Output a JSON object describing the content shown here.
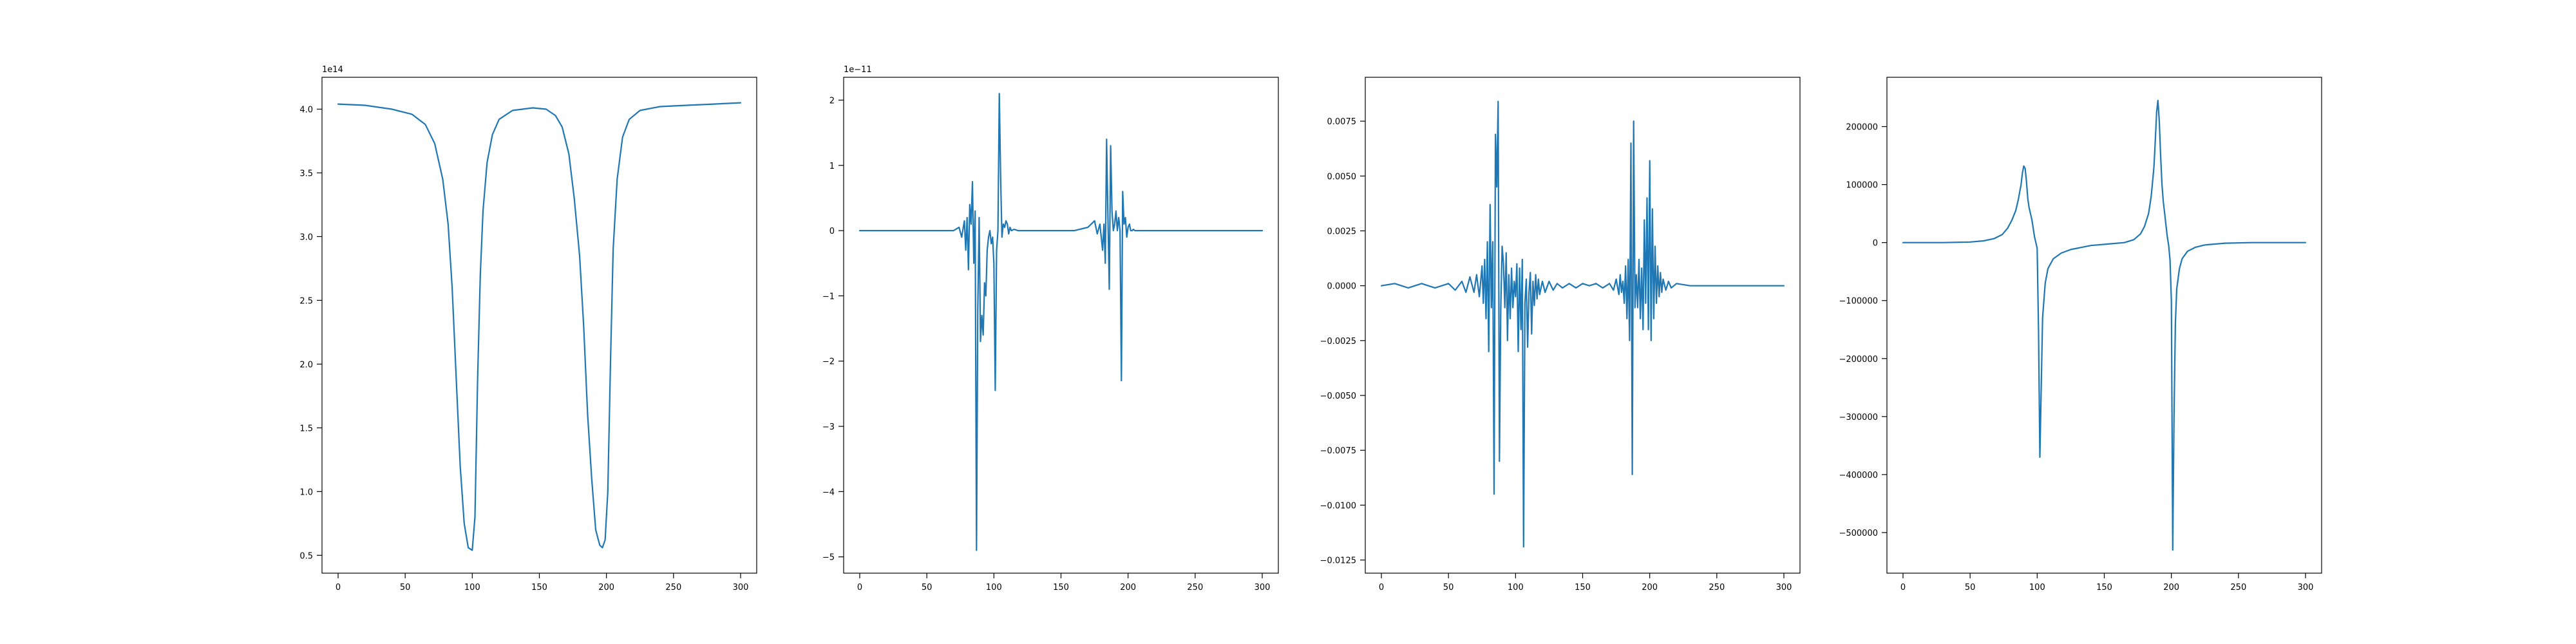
{
  "chart_data": [
    {
      "type": "line",
      "title": "",
      "xlabel": "",
      "ylabel": "",
      "offset_text": "1e14",
      "xlim": [
        -12,
        312
      ],
      "ylim": [
        0.36,
        4.25
      ],
      "xticks": [
        0,
        50,
        100,
        150,
        200,
        250,
        300
      ],
      "xtick_labels": [
        "0",
        "50",
        "100",
        "150",
        "200",
        "250",
        "300"
      ],
      "yticks": [
        0.5,
        1.0,
        1.5,
        2.0,
        2.5,
        3.0,
        3.5,
        4.0
      ],
      "ytick_labels": [
        "0.5",
        "1.0",
        "1.5",
        "2.0",
        "2.5",
        "3.0",
        "3.5",
        "4.0"
      ],
      "grid": false,
      "color": "#1f77b4",
      "series": [
        {
          "x": [
            0,
            20,
            40,
            55,
            65,
            72,
            78,
            82,
            85,
            88,
            91,
            94,
            97,
            100,
            102,
            104,
            106,
            108,
            111,
            115,
            120,
            130,
            145,
            155,
            162,
            167,
            172,
            176,
            180,
            183,
            186,
            189,
            192,
            195,
            197,
            199,
            201,
            203,
            205,
            208,
            212,
            217,
            225,
            240,
            260,
            280,
            300
          ],
          "y": [
            4.04,
            4.03,
            4.0,
            3.96,
            3.88,
            3.73,
            3.45,
            3.1,
            2.6,
            1.9,
            1.2,
            0.75,
            0.56,
            0.54,
            0.8,
            1.9,
            2.7,
            3.2,
            3.58,
            3.8,
            3.92,
            3.99,
            4.01,
            4.0,
            3.95,
            3.86,
            3.65,
            3.3,
            2.85,
            2.3,
            1.6,
            1.1,
            0.7,
            0.58,
            0.56,
            0.62,
            1.0,
            2.0,
            2.9,
            3.45,
            3.78,
            3.92,
            3.99,
            4.02,
            4.03,
            4.04,
            4.05
          ]
        }
      ]
    },
    {
      "type": "line",
      "title": "",
      "xlabel": "",
      "ylabel": "",
      "offset_text": "1e−11",
      "xlim": [
        -12,
        312
      ],
      "ylim": [
        -5.25,
        2.35
      ],
      "xticks": [
        0,
        50,
        100,
        150,
        200,
        250,
        300
      ],
      "xtick_labels": [
        "0",
        "50",
        "100",
        "150",
        "200",
        "250",
        "300"
      ],
      "yticks": [
        -5,
        -4,
        -3,
        -2,
        -1,
        0,
        1,
        2
      ],
      "ytick_labels": [
        "−5",
        "−4",
        "−3",
        "−2",
        "−1",
        "0",
        "1",
        "2"
      ],
      "grid": false,
      "color": "#1f77b4",
      "series": [
        {
          "x": [
            0,
            50,
            70,
            74,
            76,
            78,
            79,
            80,
            81,
            82,
            83,
            84,
            85,
            86,
            87,
            88,
            89,
            90,
            91,
            92,
            93,
            94,
            95,
            96,
            97,
            98,
            99,
            100,
            101,
            102,
            103,
            104,
            105,
            106,
            107,
            108,
            109,
            110,
            111,
            112,
            113,
            115,
            118,
            122,
            130,
            160,
            170,
            175,
            177,
            179,
            181,
            182,
            183,
            184,
            185,
            186,
            187,
            188,
            189,
            190,
            191,
            192,
            193,
            194,
            195,
            196,
            197,
            198,
            199,
            200,
            201,
            202,
            203,
            204,
            205,
            206,
            207,
            208,
            210,
            213,
            220,
            250,
            300
          ],
          "y": [
            0,
            0,
            0,
            0.05,
            -0.1,
            0.15,
            -0.3,
            0.2,
            -0.6,
            0.4,
            0.1,
            0.75,
            -0.5,
            0.3,
            -4.9,
            -1.2,
            0.2,
            -1.7,
            -1.3,
            -1.6,
            -0.8,
            -1.0,
            -0.3,
            -0.1,
            0.0,
            -0.2,
            -0.1,
            -0.5,
            -2.45,
            -0.3,
            0.0,
            2.1,
            0.8,
            -0.1,
            0.1,
            0.05,
            0.15,
            0.1,
            -0.05,
            0.05,
            0.0,
            0.02,
            0.0,
            0.0,
            0.0,
            0.0,
            0.05,
            0.15,
            -0.05,
            0.1,
            -0.3,
            0.1,
            -0.5,
            1.4,
            0.2,
            -0.9,
            1.3,
            0.3,
            0.0,
            0.1,
            0.3,
            0.0,
            0.2,
            0.0,
            -2.3,
            0.6,
            0.1,
            0.2,
            -0.1,
            0.05,
            0.1,
            0.0,
            0.0,
            0.02,
            0.0,
            0.0,
            0.0,
            0.0,
            0.0,
            0.0,
            0.0,
            0.0,
            0.0
          ]
        }
      ]
    },
    {
      "type": "line",
      "title": "",
      "xlabel": "",
      "ylabel": "",
      "offset_text": "",
      "xlim": [
        -12,
        312
      ],
      "ylim": [
        -0.0131,
        0.0095
      ],
      "xticks": [
        0,
        50,
        100,
        150,
        200,
        250,
        300
      ],
      "xtick_labels": [
        "0",
        "50",
        "100",
        "150",
        "200",
        "250",
        "300"
      ],
      "yticks": [
        -0.0125,
        -0.01,
        -0.0075,
        -0.005,
        -0.0025,
        0.0,
        0.0025,
        0.005,
        0.0075
      ],
      "ytick_labels": [
        "−0.0125",
        "−0.0100",
        "−0.0075",
        "−0.0050",
        "−0.0025",
        "0.0000",
        "0.0025",
        "0.0050",
        "0.0075"
      ],
      "grid": false,
      "color": "#1f77b4",
      "series": [
        {
          "x": [
            0,
            10,
            20,
            30,
            40,
            50,
            55,
            60,
            63,
            66,
            69,
            71,
            73,
            75,
            76,
            77,
            78,
            79,
            80,
            81,
            82,
            83,
            84,
            85,
            86,
            87,
            88,
            89,
            90,
            91,
            92,
            93,
            94,
            95,
            96,
            97,
            98,
            99,
            100,
            101,
            102,
            103,
            104,
            105,
            106,
            107,
            108,
            109,
            110,
            111,
            112,
            113,
            114,
            115,
            116,
            117,
            118,
            120,
            122,
            125,
            128,
            131,
            135,
            140,
            145,
            150,
            155,
            160,
            165,
            170,
            173,
            175,
            177,
            178,
            179,
            180,
            181,
            182,
            183,
            184,
            185,
            186,
            187,
            188,
            189,
            190,
            191,
            192,
            193,
            194,
            195,
            196,
            197,
            198,
            199,
            200,
            201,
            202,
            203,
            204,
            205,
            206,
            207,
            208,
            209,
            210,
            212,
            214,
            216,
            220,
            230,
            240,
            260,
            280,
            300
          ],
          "y": [
            0.0,
            0.0001,
            -0.0001,
            0.0001,
            -0.0001,
            0.0001,
            -0.0002,
            0.0002,
            -0.0003,
            0.0004,
            -0.0003,
            0.0005,
            -0.0005,
            0.0009,
            -0.0008,
            0.0012,
            -0.0015,
            0.002,
            -0.003,
            0.0037,
            -0.001,
            0.002,
            -0.0095,
            0.0069,
            0.0045,
            0.0084,
            -0.008,
            -0.001,
            0.0018,
            0.001,
            -0.001,
            0.0015,
            -0.0025,
            0.0005,
            -0.0015,
            0.0008,
            -0.001,
            0.0002,
            -0.0005,
            0.001,
            -0.003,
            0.0008,
            -0.002,
            0.0012,
            -0.0119,
            -0.0008,
            0.0003,
            -0.0028,
            -0.0003,
            0.0006,
            -0.0022,
            0.0002,
            -0.0009,
            0.0005,
            -0.0006,
            0.0003,
            -0.0004,
            0.0002,
            -0.0003,
            0.0002,
            -0.0002,
            0.0001,
            -0.0001,
            0.0001,
            -0.0001,
            0.0001,
            0.0,
            0.0001,
            -0.0001,
            0.0001,
            -0.0002,
            0.0003,
            -0.0004,
            0.0005,
            -0.0003,
            0.0002,
            -0.0008,
            0.0009,
            -0.0015,
            0.0012,
            -0.0025,
            0.0065,
            -0.0086,
            0.0075,
            -0.001,
            0.0005,
            -0.001,
            0.0012,
            -0.0015,
            0.0008,
            -0.002,
            0.003,
            -0.0008,
            0.004,
            -0.002,
            0.0057,
            -0.0025,
            0.0035,
            -0.0015,
            0.0018,
            -0.0008,
            0.0009,
            -0.0005,
            0.0006,
            -0.0003,
            0.0003,
            -0.0002,
            0.0002,
            -0.0001,
            0.0001,
            0.0,
            0.0,
            0.0,
            0.0,
            0.0
          ]
        }
      ]
    },
    {
      "type": "line",
      "title": "",
      "xlabel": "",
      "ylabel": "",
      "offset_text": "",
      "xlim": [
        -12,
        312
      ],
      "ylim": [
        -570000,
        285000
      ],
      "xticks": [
        0,
        50,
        100,
        150,
        200,
        250,
        300
      ],
      "xtick_labels": [
        "0",
        "50",
        "100",
        "150",
        "200",
        "250",
        "300"
      ],
      "yticks": [
        -500000,
        -400000,
        -300000,
        -200000,
        -100000,
        0,
        100000,
        200000
      ],
      "ytick_labels": [
        "−500000",
        "−400000",
        "−300000",
        "−200000",
        "−100000",
        "0",
        "100000",
        "200000"
      ],
      "grid": false,
      "color": "#1f77b4",
      "series": [
        {
          "x": [
            0,
            30,
            50,
            60,
            68,
            74,
            78,
            81,
            84,
            86,
            88,
            89,
            90,
            91,
            92,
            93,
            94,
            95,
            96,
            97,
            98,
            99,
            100,
            101,
            102,
            103,
            104,
            106,
            108,
            112,
            118,
            125,
            140,
            155,
            165,
            172,
            177,
            180,
            183,
            185,
            187,
            188,
            189,
            190,
            191,
            192,
            193,
            194,
            195,
            196,
            197,
            198,
            199,
            200,
            201,
            202,
            203,
            204,
            206,
            208,
            212,
            218,
            225,
            240,
            260,
            280,
            300
          ],
          "y": [
            0,
            0,
            1000,
            3000,
            7000,
            14000,
            25000,
            38000,
            55000,
            75000,
            100000,
            120000,
            132000,
            128000,
            105000,
            75000,
            60000,
            50000,
            40000,
            25000,
            10000,
            0,
            -10000,
            -150000,
            -370000,
            -250000,
            -130000,
            -70000,
            -45000,
            -28000,
            -18000,
            -12000,
            -5000,
            -2000,
            0,
            5000,
            15000,
            28000,
            50000,
            80000,
            130000,
            175000,
            225000,
            245000,
            210000,
            150000,
            100000,
            70000,
            50000,
            30000,
            10000,
            -5000,
            -30000,
            -100000,
            -530000,
            -300000,
            -140000,
            -80000,
            -45000,
            -28000,
            -15000,
            -8000,
            -4000,
            -1000,
            0,
            0,
            0
          ]
        }
      ]
    }
  ]
}
